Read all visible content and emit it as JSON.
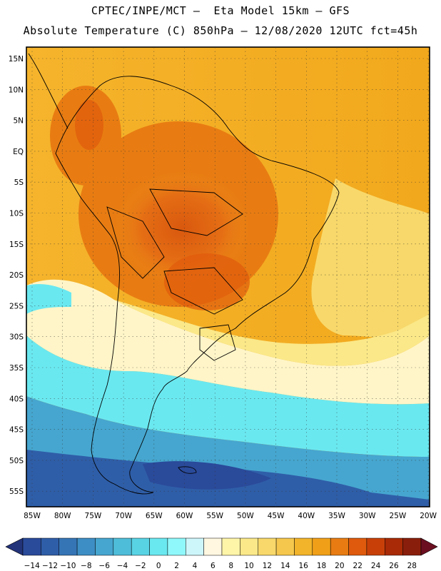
{
  "header": {
    "line1": "CPTEC/INPE/MCT –  Eta Model 15km – GFS",
    "line2": "Absolute Temperature (C) 850hPa – 12/08/2020 12UTC fct=45h"
  },
  "map": {
    "latitude_labels": [
      "15N",
      "10N",
      "5N",
      "EQ",
      "5S",
      "10S",
      "15S",
      "20S",
      "25S",
      "30S",
      "35S",
      "40S",
      "45S",
      "50S",
      "55S"
    ],
    "longitude_labels": [
      "85W",
      "80W",
      "75W",
      "70W",
      "65W",
      "60W",
      "55W",
      "50W",
      "45W",
      "40W",
      "35W",
      "30W",
      "25W",
      "20W"
    ]
  },
  "colorbar": {
    "tick_labels": [
      "-14",
      "-12",
      "-10",
      "-8",
      "-6",
      "-4",
      "-2",
      "0",
      "2",
      "4",
      "6",
      "8",
      "10",
      "12",
      "14",
      "16",
      "18",
      "20",
      "22",
      "24",
      "26",
      "28"
    ],
    "below_color": "#23337a",
    "above_color": "#6b0f20",
    "colors": [
      "#2a4a9a",
      "#2f5ea8",
      "#3575b6",
      "#3d8ec4",
      "#46a6cf",
      "#4ebdd9",
      "#58d3e4",
      "#6ae8f0",
      "#8ff8fa",
      "#cdf6fb",
      "#fff7e0",
      "#fff5a8",
      "#fbe888",
      "#f8d86a",
      "#f5c74c",
      "#f2b42a",
      "#f0a018",
      "#e87c12",
      "#df5a0c",
      "#c84008",
      "#a82a06",
      "#8a1e0c"
    ]
  }
}
